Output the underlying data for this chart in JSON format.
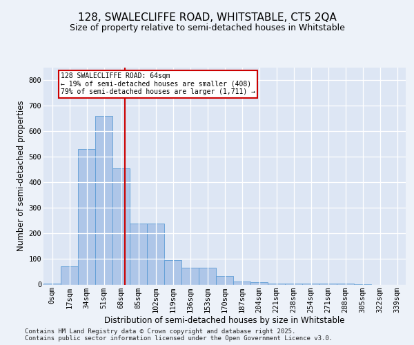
{
  "title": "128, SWALECLIFFE ROAD, WHITSTABLE, CT5 2QA",
  "subtitle": "Size of property relative to semi-detached houses in Whitstable",
  "xlabel": "Distribution of semi-detached houses by size in Whitstable",
  "ylabel": "Number of semi-detached properties",
  "bin_labels": [
    "0sqm",
    "17sqm",
    "34sqm",
    "51sqm",
    "68sqm",
    "85sqm",
    "102sqm",
    "119sqm",
    "136sqm",
    "153sqm",
    "170sqm",
    "187sqm",
    "204sqm",
    "221sqm",
    "238sqm",
    "254sqm",
    "271sqm",
    "288sqm",
    "305sqm",
    "322sqm",
    "339sqm"
  ],
  "bar_heights": [
    5,
    72,
    530,
    660,
    455,
    240,
    240,
    95,
    65,
    65,
    35,
    12,
    10,
    5,
    5,
    5,
    4,
    3,
    2,
    0,
    0
  ],
  "bar_color": "#aec6e8",
  "bar_edge_color": "#5b9bd5",
  "vline_x": 4.22,
  "vline_color": "#cc0000",
  "annotation_text": "128 SWALECLIFFE ROAD: 64sqm\n← 19% of semi-detached houses are smaller (408)\n79% of semi-detached houses are larger (1,711) →",
  "annotation_box_color": "#ffffff",
  "annotation_border_color": "#cc0000",
  "ylim": [
    0,
    850
  ],
  "yticks": [
    0,
    100,
    200,
    300,
    400,
    500,
    600,
    700,
    800
  ],
  "footer_text": "Contains HM Land Registry data © Crown copyright and database right 2025.\nContains public sector information licensed under the Open Government Licence v3.0.",
  "background_color": "#edf2f9",
  "plot_background_color": "#dde6f4",
  "grid_color": "#ffffff",
  "title_fontsize": 11,
  "subtitle_fontsize": 9,
  "axis_label_fontsize": 8.5,
  "tick_fontsize": 7.5,
  "footer_fontsize": 6.5
}
